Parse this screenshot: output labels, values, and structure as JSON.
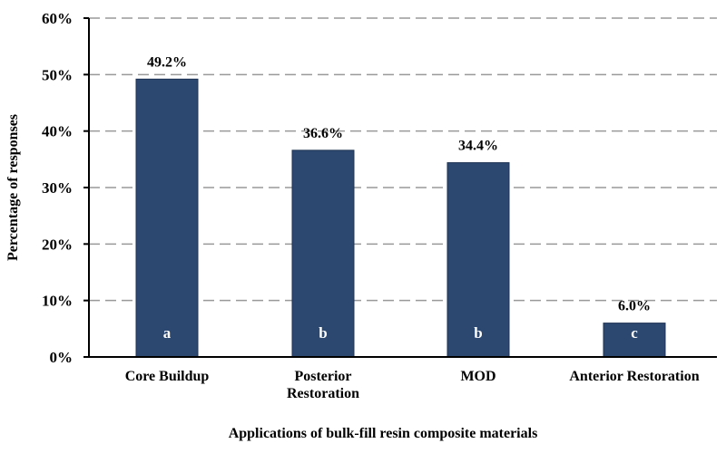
{
  "chart_data": {
    "type": "bar",
    "title": "",
    "xlabel": "Applications of bulk-fill resin composite materials",
    "ylabel": "Percentage of responses",
    "categories": [
      [
        "Core Buildup"
      ],
      [
        "Posterior",
        "Restoration"
      ],
      [
        "MOD"
      ],
      [
        "Anterior Restoration"
      ]
    ],
    "values": [
      49.2,
      36.6,
      34.4,
      6.0
    ],
    "data_labels": [
      "49.2%",
      "36.6%",
      "34.4%",
      "6.0%"
    ],
    "group_letters": [
      "a",
      "b",
      "b",
      "c"
    ],
    "ylim": [
      0,
      60
    ],
    "yticks": [
      "0%",
      "10%",
      "20%",
      "30%",
      "40%",
      "50%",
      "60%"
    ],
    "grid": true,
    "bar_color": "#2c4770"
  }
}
